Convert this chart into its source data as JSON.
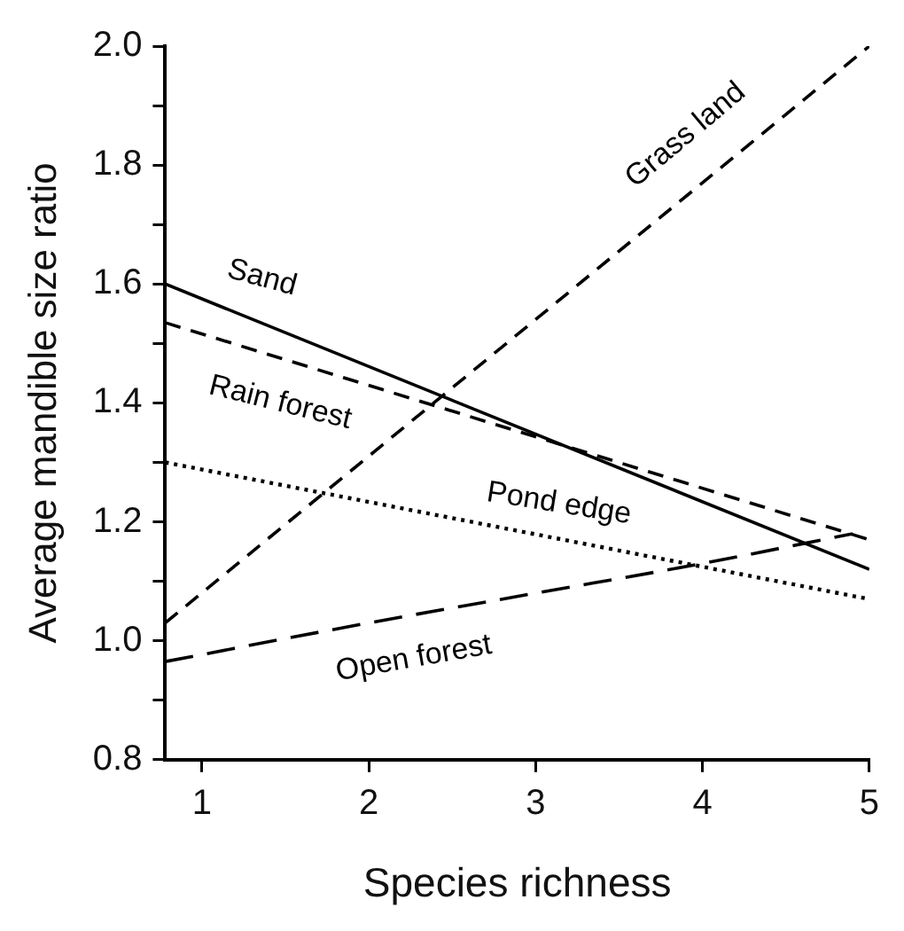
{
  "chart_data": {
    "type": "line",
    "xlabel": "Species richness",
    "ylabel": "Average mandible size ratio",
    "xlim": [
      0.78,
      5
    ],
    "xticks": [
      1,
      2,
      3,
      4,
      5
    ],
    "ylim": [
      0.8,
      2.0
    ],
    "yticks": [
      0.8,
      {
        "value": 0.9,
        "label": null
      },
      {
        "value": 1,
        "label": "1.0"
      },
      {
        "value": 1.1,
        "label": null
      },
      1.2,
      {
        "value": 1.3,
        "label": null
      },
      1.4,
      {
        "value": 1.5,
        "label": null
      },
      1.6,
      {
        "value": 1.7,
        "label": null
      },
      1.8,
      {
        "value": 1.9,
        "label": null
      },
      {
        "value": 2,
        "label": "2.0"
      }
    ],
    "grid": false,
    "legend": false,
    "marker": "none",
    "series": [
      {
        "name": "Sand",
        "color": "#000000",
        "line_style": "solid",
        "x": [
          0.78,
          5
        ],
        "values": [
          1.6,
          1.12
        ]
      },
      {
        "name": "Rain forest",
        "color": "#000000",
        "line_style": "dashed",
        "x": [
          0.78,
          5
        ],
        "values": [
          1.535,
          1.17
        ]
      },
      {
        "name": "Grass land",
        "color": "#000000",
        "line_style": "dashed",
        "x": [
          0.78,
          5
        ],
        "values": [
          1.03,
          2.0
        ]
      },
      {
        "name": "Pond edge",
        "color": "#000000",
        "line_style": "dotted",
        "x": [
          0.78,
          5
        ],
        "values": [
          1.3,
          1.07
        ]
      },
      {
        "name": "Open forest",
        "color": "#000000",
        "line_style": "dashed",
        "x": [
          0.78,
          2,
          3,
          4,
          4.9
        ],
        "values": [
          0.965,
          1.03,
          1.08,
          1.13,
          1.18
        ]
      }
    ]
  }
}
